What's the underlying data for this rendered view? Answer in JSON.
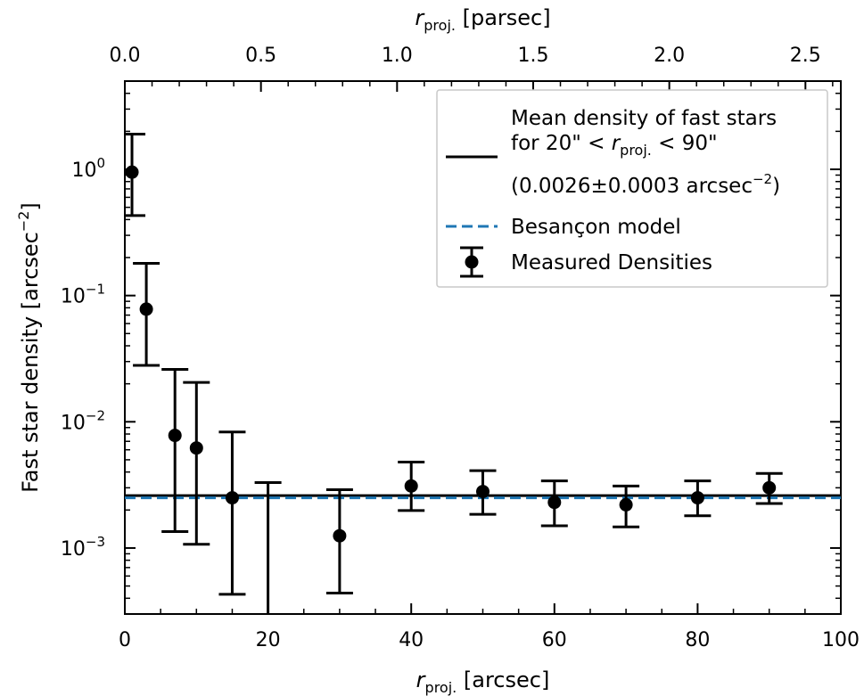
{
  "chart_data": {
    "type": "scatter",
    "xlabel": {
      "sym": "r",
      "sub": "proj.",
      "unit": "[arcsec]"
    },
    "x2label": {
      "sym": "r",
      "sub": "proj.",
      "unit": "[parsec]"
    },
    "ylabel": {
      "main": "Fast star density [arcsec",
      "exp": "−2",
      "close": "]"
    },
    "xlim": [
      0,
      100
    ],
    "x2lim": [
      0,
      2.63
    ],
    "ylim": [
      0.0003,
      5
    ],
    "yscale": "log",
    "x_ticks": [
      "0",
      "20",
      "40",
      "60",
      "80",
      "100"
    ],
    "x2_ticks": [
      "0.0",
      "0.5",
      "1.0",
      "1.5",
      "2.0",
      "2.5"
    ],
    "y_ticks": [
      {
        "value": 1,
        "base": "10",
        "exp": "0"
      },
      {
        "value": 0.1,
        "base": "10",
        "exp": "−1"
      },
      {
        "value": 0.01,
        "base": "10",
        "exp": "−2"
      },
      {
        "value": 0.001,
        "base": "10",
        "exp": "−3"
      }
    ],
    "legend_position": "top-right",
    "series": [
      {
        "name": "Measured Densities",
        "kind": "errorbar",
        "color": "#000000",
        "points": [
          {
            "x": 1,
            "y": 0.95,
            "ylo": 0.43,
            "yhi": 1.9
          },
          {
            "x": 3,
            "y": 0.078,
            "ylo": 0.028,
            "yhi": 0.18
          },
          {
            "x": 7,
            "y": 0.0078,
            "ylo": 0.00135,
            "yhi": 0.026
          },
          {
            "x": 10,
            "y": 0.0062,
            "ylo": 0.00107,
            "yhi": 0.0205
          },
          {
            "x": 15,
            "y": 0.0025,
            "ylo": 0.00043,
            "yhi": 0.0083
          },
          {
            "x": 20,
            "y": null,
            "ylo": 0.0003,
            "yhi": 0.0033
          },
          {
            "x": 30,
            "y": 0.00125,
            "ylo": 0.00044,
            "yhi": 0.0029
          },
          {
            "x": 40,
            "y": 0.0031,
            "ylo": 0.00198,
            "yhi": 0.0048
          },
          {
            "x": 50,
            "y": 0.0028,
            "ylo": 0.00185,
            "yhi": 0.0041
          },
          {
            "x": 60,
            "y": 0.0023,
            "ylo": 0.0015,
            "yhi": 0.0034
          },
          {
            "x": 70,
            "y": 0.0022,
            "ylo": 0.00147,
            "yhi": 0.0031
          },
          {
            "x": 80,
            "y": 0.0025,
            "ylo": 0.0018,
            "yhi": 0.0034
          },
          {
            "x": 90,
            "y": 0.003,
            "ylo": 0.00225,
            "yhi": 0.0039
          }
        ]
      },
      {
        "name_lines": [
          "Mean density of fast stars",
          "for 20\" < r_proj. < 90\""
        ],
        "name_line2_parts": {
          "pre": "for 20\" < ",
          "sym": "r",
          "sub": "proj.",
          "post": " < 90\""
        },
        "name_extra": {
          "pre": "(0.0026±0.0003 arcsec",
          "exp": "−2",
          "post": ")"
        },
        "kind": "hline",
        "y": 0.0026,
        "color": "#000000"
      },
      {
        "name": "Besançon model",
        "kind": "hline-dashed",
        "y": 0.0025,
        "color": "#1f77b4"
      }
    ]
  }
}
